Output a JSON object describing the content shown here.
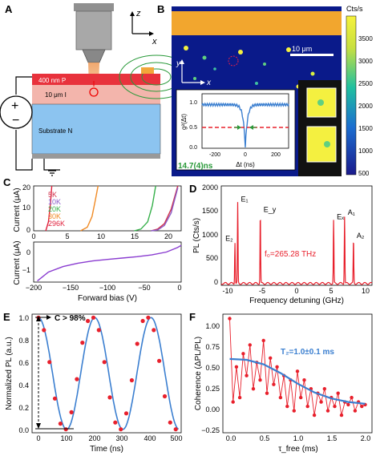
{
  "panels": {
    "A": {
      "label": "A",
      "axis_z": "z",
      "axis_x": "x",
      "layer_p": "400 nm  P",
      "layer_i": "10 μm  I",
      "layer_n": "Substrate  N",
      "source_plus": "+",
      "source_minus": "−"
    },
    "B": {
      "label": "B",
      "colorbar_title": "Cts/s",
      "colorbar_ticks": [
        "3500",
        "3000",
        "2500",
        "2000",
        "1500",
        "1000",
        "500"
      ],
      "scalebar": "10 μm",
      "axis_y": "y",
      "axis_x": "x",
      "inset": {
        "ylabel": "g²(Δt)",
        "xlabel": "Δt (ns)",
        "yticks": [
          "1.0",
          "0.5",
          "0.0"
        ],
        "xticks": [
          "-200",
          "0",
          "200"
        ],
        "annotation": "14.7(4)ns"
      }
    },
    "C": {
      "label": "C",
      "top_ylabel": "Current (μA)",
      "bottom_ylabel": "Current (μA)",
      "xlabel": "Forward bias (V)",
      "top_yticks": [
        "20",
        "10",
        "0"
      ],
      "top_xticks": [
        "0",
        "5",
        "10",
        "15",
        "20"
      ],
      "bottom_yticks": [
        "0",
        "−1"
      ],
      "bottom_xticks": [
        "−200",
        "−150",
        "−100",
        "−50",
        "0"
      ],
      "legend": [
        {
          "name": "5K",
          "color": "#d0314b"
        },
        {
          "name": "10K",
          "color": "#8a5cc8"
        },
        {
          "name": "20K",
          "color": "#36b04a"
        },
        {
          "name": "30K",
          "color": "#f08a24"
        },
        {
          "name": "296K",
          "color": "#e0203c"
        }
      ]
    },
    "D": {
      "label": "D",
      "ylabel": "PL (Cts/s)",
      "xlabel": "Frequency detuning (GHz)",
      "yticks": [
        "2000",
        "1500",
        "1000",
        "500",
        "0"
      ],
      "xticks": [
        "-10",
        "-5",
        "0",
        "5",
        "10"
      ],
      "annotation": "f₀=265.28 THz",
      "peaks": [
        {
          "name": "E₁",
          "x": -8.6,
          "y": 1700
        },
        {
          "name": "E₂",
          "x": -9.0,
          "y": 870
        },
        {
          "name": "E_y",
          "x": -5.3,
          "y": 1480
        },
        {
          "name": "Eₓ",
          "x": 5.4,
          "y": 1330
        },
        {
          "name": "A₁",
          "x": 7.0,
          "y": 1420
        },
        {
          "name": "A₂",
          "x": 8.3,
          "y": 930
        }
      ]
    },
    "E": {
      "label": "E",
      "ylabel": "Normalized PL (a.u.)",
      "xlabel": "Time (ns)",
      "yticks": [
        "1.0",
        "0.8",
        "0.6",
        "0.4",
        "0.2",
        "0.0"
      ],
      "xticks": [
        "0",
        "100",
        "200",
        "300",
        "400",
        "500"
      ],
      "annotation": "C > 98%"
    },
    "F": {
      "label": "F",
      "ylabel": "Coherence (ΔPL/PL)",
      "xlabel": "τ_free (ms)",
      "yticks": [
        "1.00",
        "0.75",
        "0.50",
        "0.25",
        "0.00",
        "−0.25"
      ],
      "xticks": [
        "0.0",
        "0.5",
        "1.0",
        "1.5",
        "2.0"
      ],
      "annotation": "T₂=1.0±0.1 ms"
    }
  },
  "colors": {
    "red": "#e8202c",
    "blue": "#3b7fd0",
    "p_layer": "#e8323c",
    "i_layer": "#f0a8a0",
    "n_layer": "#8cc4f0"
  },
  "chart_data": [
    {
      "type": "line",
      "panel": "C-top",
      "xlabel": "Forward bias (V)",
      "ylabel": "Current (μA)",
      "xlim": [
        0,
        22
      ],
      "ylim": [
        0,
        25
      ],
      "series": [
        {
          "name": "5K",
          "x": [
            17.5,
            18.5,
            19.5,
            20.5,
            21.5
          ],
          "y": [
            0,
            1,
            4,
            12,
            25
          ]
        },
        {
          "name": "10K",
          "x": [
            17.5,
            18.5,
            19.5,
            20.5,
            21.5
          ],
          "y": [
            0,
            0.5,
            3,
            10,
            24
          ]
        },
        {
          "name": "20K",
          "x": [
            15,
            16,
            17,
            17.7,
            18.2
          ],
          "y": [
            0,
            1,
            5,
            14,
            25
          ]
        },
        {
          "name": "30K",
          "x": [
            7,
            8,
            8.7,
            9.2,
            9.6
          ],
          "y": [
            0,
            2,
            8,
            17,
            25
          ]
        },
        {
          "name": "296K",
          "x": [
            1.8,
            2.2,
            2.5,
            2.7
          ],
          "y": [
            0,
            5,
            15,
            25
          ]
        }
      ]
    },
    {
      "type": "line",
      "panel": "C-bottom",
      "xlabel": "Forward bias (V)",
      "ylabel": "Current (μA)",
      "xlim": [
        -200,
        0
      ],
      "ylim": [
        -1.5,
        0.3
      ],
      "series": [
        {
          "name": "",
          "x": [
            -195,
            -180,
            -160,
            -140,
            -120,
            -100,
            -80,
            -60,
            -40,
            -20,
            -5,
            0
          ],
          "y": [
            -1.45,
            -1.05,
            -0.8,
            -0.65,
            -0.55,
            -0.48,
            -0.42,
            -0.36,
            -0.28,
            -0.15,
            0.05,
            0.15
          ]
        }
      ]
    },
    {
      "type": "line",
      "panel": "D",
      "xlabel": "Frequency detuning (GHz)",
      "ylabel": "PL (Cts/s)",
      "xlim": [
        -11,
        11
      ],
      "ylim": [
        0,
        2100
      ],
      "series": [
        {
          "name": "",
          "x": [
            -9.0,
            -8.6,
            -5.3,
            5.4,
            7.0,
            8.3
          ],
          "y": [
            870,
            1700,
            1480,
            1330,
            1420,
            930
          ]
        }
      ]
    },
    {
      "type": "scatter",
      "panel": "E",
      "xlabel": "Time (ns)",
      "ylabel": "Normalized PL (a.u.)",
      "xlim": [
        0,
        520
      ],
      "ylim": [
        -0.02,
        1.02
      ],
      "period_ns": 205,
      "series": [
        {
          "name": "",
          "x": [
            0,
            20,
            40,
            60,
            80,
            100,
            120,
            140,
            160,
            180,
            200,
            220,
            240,
            260,
            280,
            300,
            320,
            340,
            360,
            380,
            400,
            420,
            440,
            460,
            480,
            500
          ],
          "y": [
            0.99,
            0.88,
            0.6,
            0.28,
            0.06,
            0.01,
            0.16,
            0.45,
            0.77,
            0.96,
            0.99,
            0.88,
            0.6,
            0.29,
            0.07,
            0.01,
            0.15,
            0.44,
            0.76,
            0.96,
            0.99,
            0.88,
            0.61,
            0.3,
            0.07,
            0.01
          ]
        }
      ]
    },
    {
      "type": "scatter",
      "panel": "F",
      "xlabel": "τ_free (ms)",
      "ylabel": "Coherence (ΔPL/PL)",
      "xlim": [
        -0.1,
        2.1
      ],
      "ylim": [
        -0.3,
        1.05
      ],
      "series": [
        {
          "name": "",
          "x": [
            0.0,
            0.05,
            0.1,
            0.15,
            0.2,
            0.25,
            0.3,
            0.35,
            0.4,
            0.45,
            0.5,
            0.55,
            0.6,
            0.65,
            0.7,
            0.75,
            0.8,
            0.85,
            0.9,
            0.95,
            1.0,
            1.05,
            1.1,
            1.15,
            1.2,
            1.25,
            1.3,
            1.35,
            1.4,
            1.45,
            1.5,
            1.55,
            1.6,
            1.65,
            1.7,
            1.75,
            1.8,
            1.85,
            1.9,
            1.95,
            2.0
          ],
          "y": [
            1.0,
            0.05,
            0.45,
            0.1,
            0.6,
            0.35,
            0.7,
            0.2,
            0.5,
            0.3,
            0.75,
            0.15,
            0.55,
            0.25,
            0.45,
            0.1,
            0.35,
            0.0,
            0.3,
            -0.05,
            0.4,
            0.1,
            0.3,
            0.0,
            0.2,
            -0.1,
            0.15,
            0.05,
            0.2,
            -0.05,
            0.1,
            0.0,
            0.15,
            -0.1,
            0.05,
            0.02,
            0.1,
            -0.05,
            0.05,
            0.0,
            0.02
          ]
        },
        {
          "name": "",
          "x": [
            0.0,
            0.25,
            0.5,
            0.75,
            1.0,
            1.25,
            1.5,
            1.75,
            2.0
          ],
          "y": [
            0.54,
            0.53,
            0.48,
            0.38,
            0.26,
            0.16,
            0.09,
            0.05,
            0.03
          ]
        }
      ]
    }
  ]
}
